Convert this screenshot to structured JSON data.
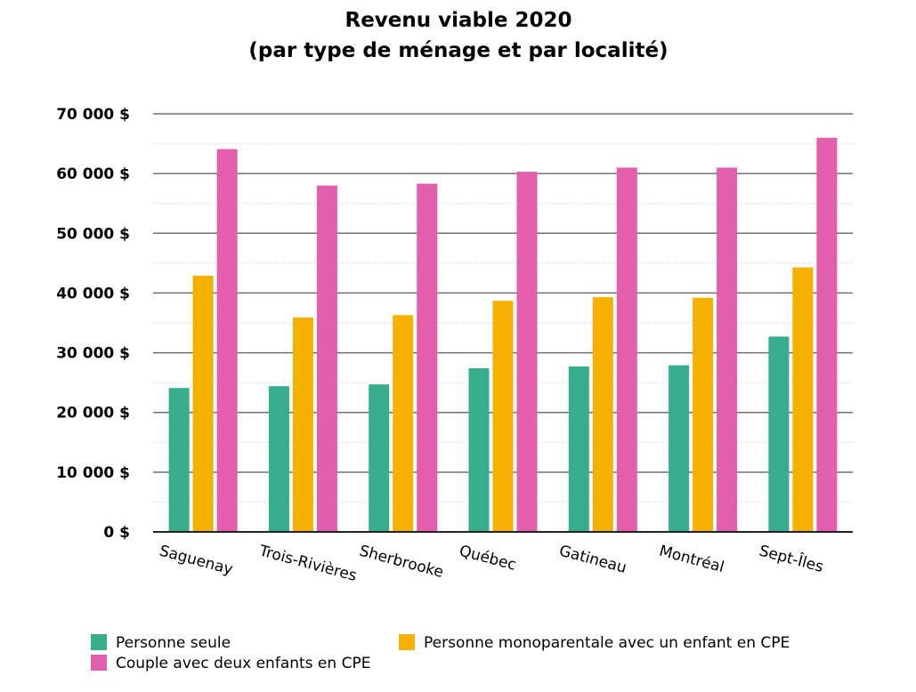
{
  "chart_data": {
    "type": "bar",
    "title": "Revenu viable  2020",
    "subtitle": "(par type de ménage et par localité)",
    "categories": [
      "Saguenay",
      "Trois-Rivières",
      "Sherbrooke",
      "Québec",
      "Gatineau",
      "Montréal",
      "Sept-Îles"
    ],
    "series": [
      {
        "name": "Personne seule",
        "color": "#37AD8D",
        "values": [
          24100,
          24400,
          24700,
          27400,
          27700,
          27900,
          32700
        ]
      },
      {
        "name": "Personne monoparentale avec un enfant en CPE",
        "color": "#F5B000",
        "values": [
          42900,
          35900,
          36300,
          38700,
          39300,
          39200,
          44300
        ]
      },
      {
        "name": "Couple avec deux enfants en CPE",
        "color": "#E35FAE",
        "values": [
          64100,
          58000,
          58300,
          60300,
          61000,
          61000,
          66000
        ]
      }
    ],
    "ylim": [
      0,
      70000
    ],
    "yticks": [
      {
        "value": 0,
        "label": "0 $"
      },
      {
        "value": 10000,
        "label": "10  000 $"
      },
      {
        "value": 20000,
        "label": "20  000 $"
      },
      {
        "value": 30000,
        "label": "30  000 $"
      },
      {
        "value": 40000,
        "label": "40  000 $"
      },
      {
        "value": 50000,
        "label": "50  000 $"
      },
      {
        "value": 60000,
        "label": "60  000 $"
      },
      {
        "value": 70000,
        "label": "70  000 $"
      }
    ],
    "minor_gridlines": [
      5000,
      15000,
      25000,
      35000,
      45000,
      55000,
      65000
    ],
    "grid": true,
    "legend_position": "bottom",
    "xlabel": "",
    "ylabel": ""
  }
}
